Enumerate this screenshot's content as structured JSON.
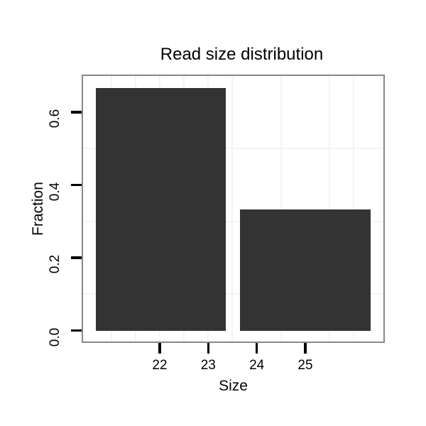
{
  "chart_data": {
    "type": "bar",
    "title": "Read size distribution",
    "xlabel": "Size",
    "ylabel": "Fraction",
    "x_ticks": [
      {
        "value": 22,
        "label": "22"
      },
      {
        "value": 23,
        "label": "23"
      },
      {
        "value": 24,
        "label": "24"
      },
      {
        "value": 25,
        "label": "25"
      }
    ],
    "y_ticks": [
      {
        "value": 0.0,
        "label": "0.0"
      },
      {
        "value": 0.2,
        "label": "0.2"
      },
      {
        "value": 0.4,
        "label": "0.4"
      },
      {
        "value": 0.6,
        "label": "0.6"
      }
    ],
    "xlim": [
      20.42,
      26.61
    ],
    "ylim": [
      -0.03,
      0.7
    ],
    "bars": [
      {
        "x_center": 22,
        "x_start": 20.68,
        "x_end": 23.36,
        "value": 0.667
      },
      {
        "x_center": 25,
        "x_start": 23.66,
        "x_end": 26.34,
        "value": 0.333
      }
    ],
    "minor_gridlines_x": [
      21,
      21.5,
      22,
      22.5,
      23,
      23.5,
      24.5,
      25.5,
      26
    ],
    "minor_gridlines_y": [
      0.1,
      0.3,
      0.5
    ],
    "legend": "none",
    "grid": "minor-gridlines-only",
    "colors": {
      "bar_fill": "#333333",
      "panel_border": "#888888",
      "gridline": "#f4f4f4",
      "axis_text": "#000000",
      "tick_mark": "#000000",
      "background": "#ffffff"
    }
  }
}
